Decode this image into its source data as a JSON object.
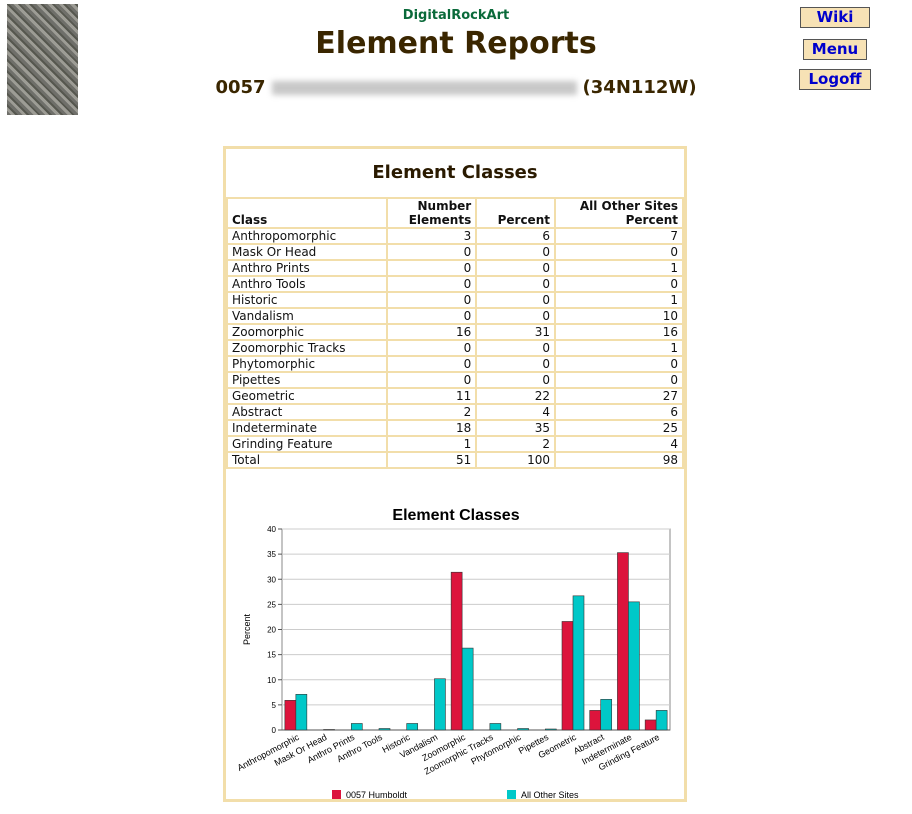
{
  "header": {
    "brand": "DigitalRockArt",
    "title": "Element Reports",
    "site_number": "0057",
    "site_code": "(34N112W)"
  },
  "buttons": [
    "Wiki",
    "Menu",
    "Logoff"
  ],
  "table": {
    "title": "Element Classes",
    "columns": [
      "Class",
      "Number Elements",
      "Percent",
      "All Other Sites Percent"
    ],
    "rows": [
      [
        "Anthropomorphic",
        3,
        6,
        7
      ],
      [
        "Mask Or Head",
        0,
        0,
        0
      ],
      [
        "Anthro Prints",
        0,
        0,
        1
      ],
      [
        "Anthro Tools",
        0,
        0,
        0
      ],
      [
        "Historic",
        0,
        0,
        1
      ],
      [
        "Vandalism",
        0,
        0,
        10
      ],
      [
        "Zoomorphic",
        16,
        31,
        16
      ],
      [
        "Zoomorphic Tracks",
        0,
        0,
        1
      ],
      [
        "Phytomorphic",
        0,
        0,
        0
      ],
      [
        "Pipettes",
        0,
        0,
        0
      ],
      [
        "Geometric",
        11,
        22,
        27
      ],
      [
        "Abstract",
        2,
        4,
        6
      ],
      [
        "Indeterminate",
        18,
        35,
        25
      ],
      [
        "Grinding Feature",
        1,
        2,
        4
      ],
      [
        "Total",
        51,
        100,
        98
      ]
    ]
  },
  "chart_data": {
    "type": "bar",
    "title": "Element Classes",
    "y_label": "Percent",
    "categories": [
      "Anthropomorphic",
      "Mask Or Head",
      "Anthro Prints",
      "Anthro Tools",
      "Historic",
      "Vandalism",
      "Zoomorphic",
      "Zoomorphic Tracks",
      "Phytomorphic",
      "Pipettes",
      "Geometric",
      "Abstract",
      "Indeterminate",
      "Grinding Feature"
    ],
    "series": [
      {
        "name": "0057 Humboldt",
        "color": "#dc143c",
        "values": [
          5.9,
          0,
          0,
          0,
          0,
          0,
          31.4,
          0,
          0,
          0,
          21.6,
          3.9,
          35.3,
          2.0
        ]
      },
      {
        "name": "All Other Sites",
        "color": "#00c8c8",
        "values": [
          7.1,
          0.1,
          1.3,
          0.3,
          1.3,
          10.2,
          16.3,
          1.3,
          0.3,
          0.2,
          26.7,
          6.1,
          25.5,
          3.9
        ]
      }
    ],
    "ylim": [
      0,
      40
    ],
    "yticks": [
      0,
      5,
      10,
      15,
      20,
      25,
      30,
      35,
      40
    ],
    "grid": true,
    "legend": "bottom"
  }
}
